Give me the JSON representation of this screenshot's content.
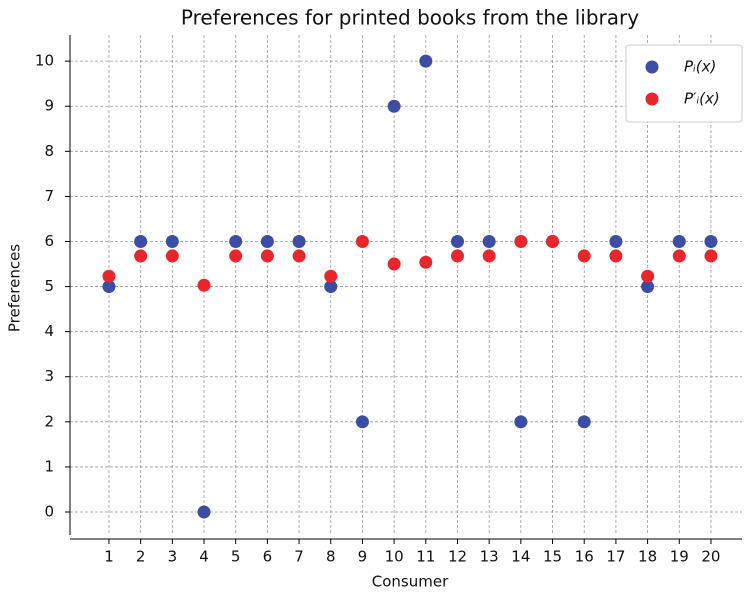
{
  "chart_data": {
    "type": "scatter",
    "title": "Preferences for printed books from the library",
    "x_label": "Consumer",
    "y_label": "Preferences",
    "x": [
      1,
      2,
      3,
      4,
      5,
      6,
      7,
      8,
      9,
      10,
      11,
      12,
      13,
      14,
      15,
      16,
      17,
      18,
      19,
      20
    ],
    "series": [
      {
        "name": "Pᵢ(x)",
        "color": "#3b4ea3",
        "values": [
          5,
          6,
          6,
          0,
          6,
          6,
          6,
          5,
          2,
          9,
          10,
          6,
          6,
          2,
          6,
          2,
          6,
          5,
          6,
          6
        ]
      },
      {
        "name": "P′ᵢ(x)",
        "color": "#e8262b",
        "values": [
          5.23,
          5.68,
          5.68,
          5.03,
          5.68,
          5.68,
          5.68,
          5.23,
          6,
          5.5,
          5.54,
          5.68,
          5.68,
          6,
          6,
          5.68,
          5.68,
          5.23,
          5.68,
          5.68
        ]
      }
    ],
    "xlim": [
      -0.23,
      20.98
    ],
    "ylim": [
      -0.51,
      10.58
    ],
    "xticks": [
      1,
      2,
      3,
      4,
      5,
      6,
      7,
      8,
      9,
      10,
      11,
      12,
      13,
      14,
      15,
      16,
      17,
      18,
      19,
      20
    ],
    "yticks": [
      0,
      1,
      2,
      3,
      4,
      5,
      6,
      7,
      8,
      9,
      10
    ],
    "grid": true,
    "legend": "upper right"
  }
}
